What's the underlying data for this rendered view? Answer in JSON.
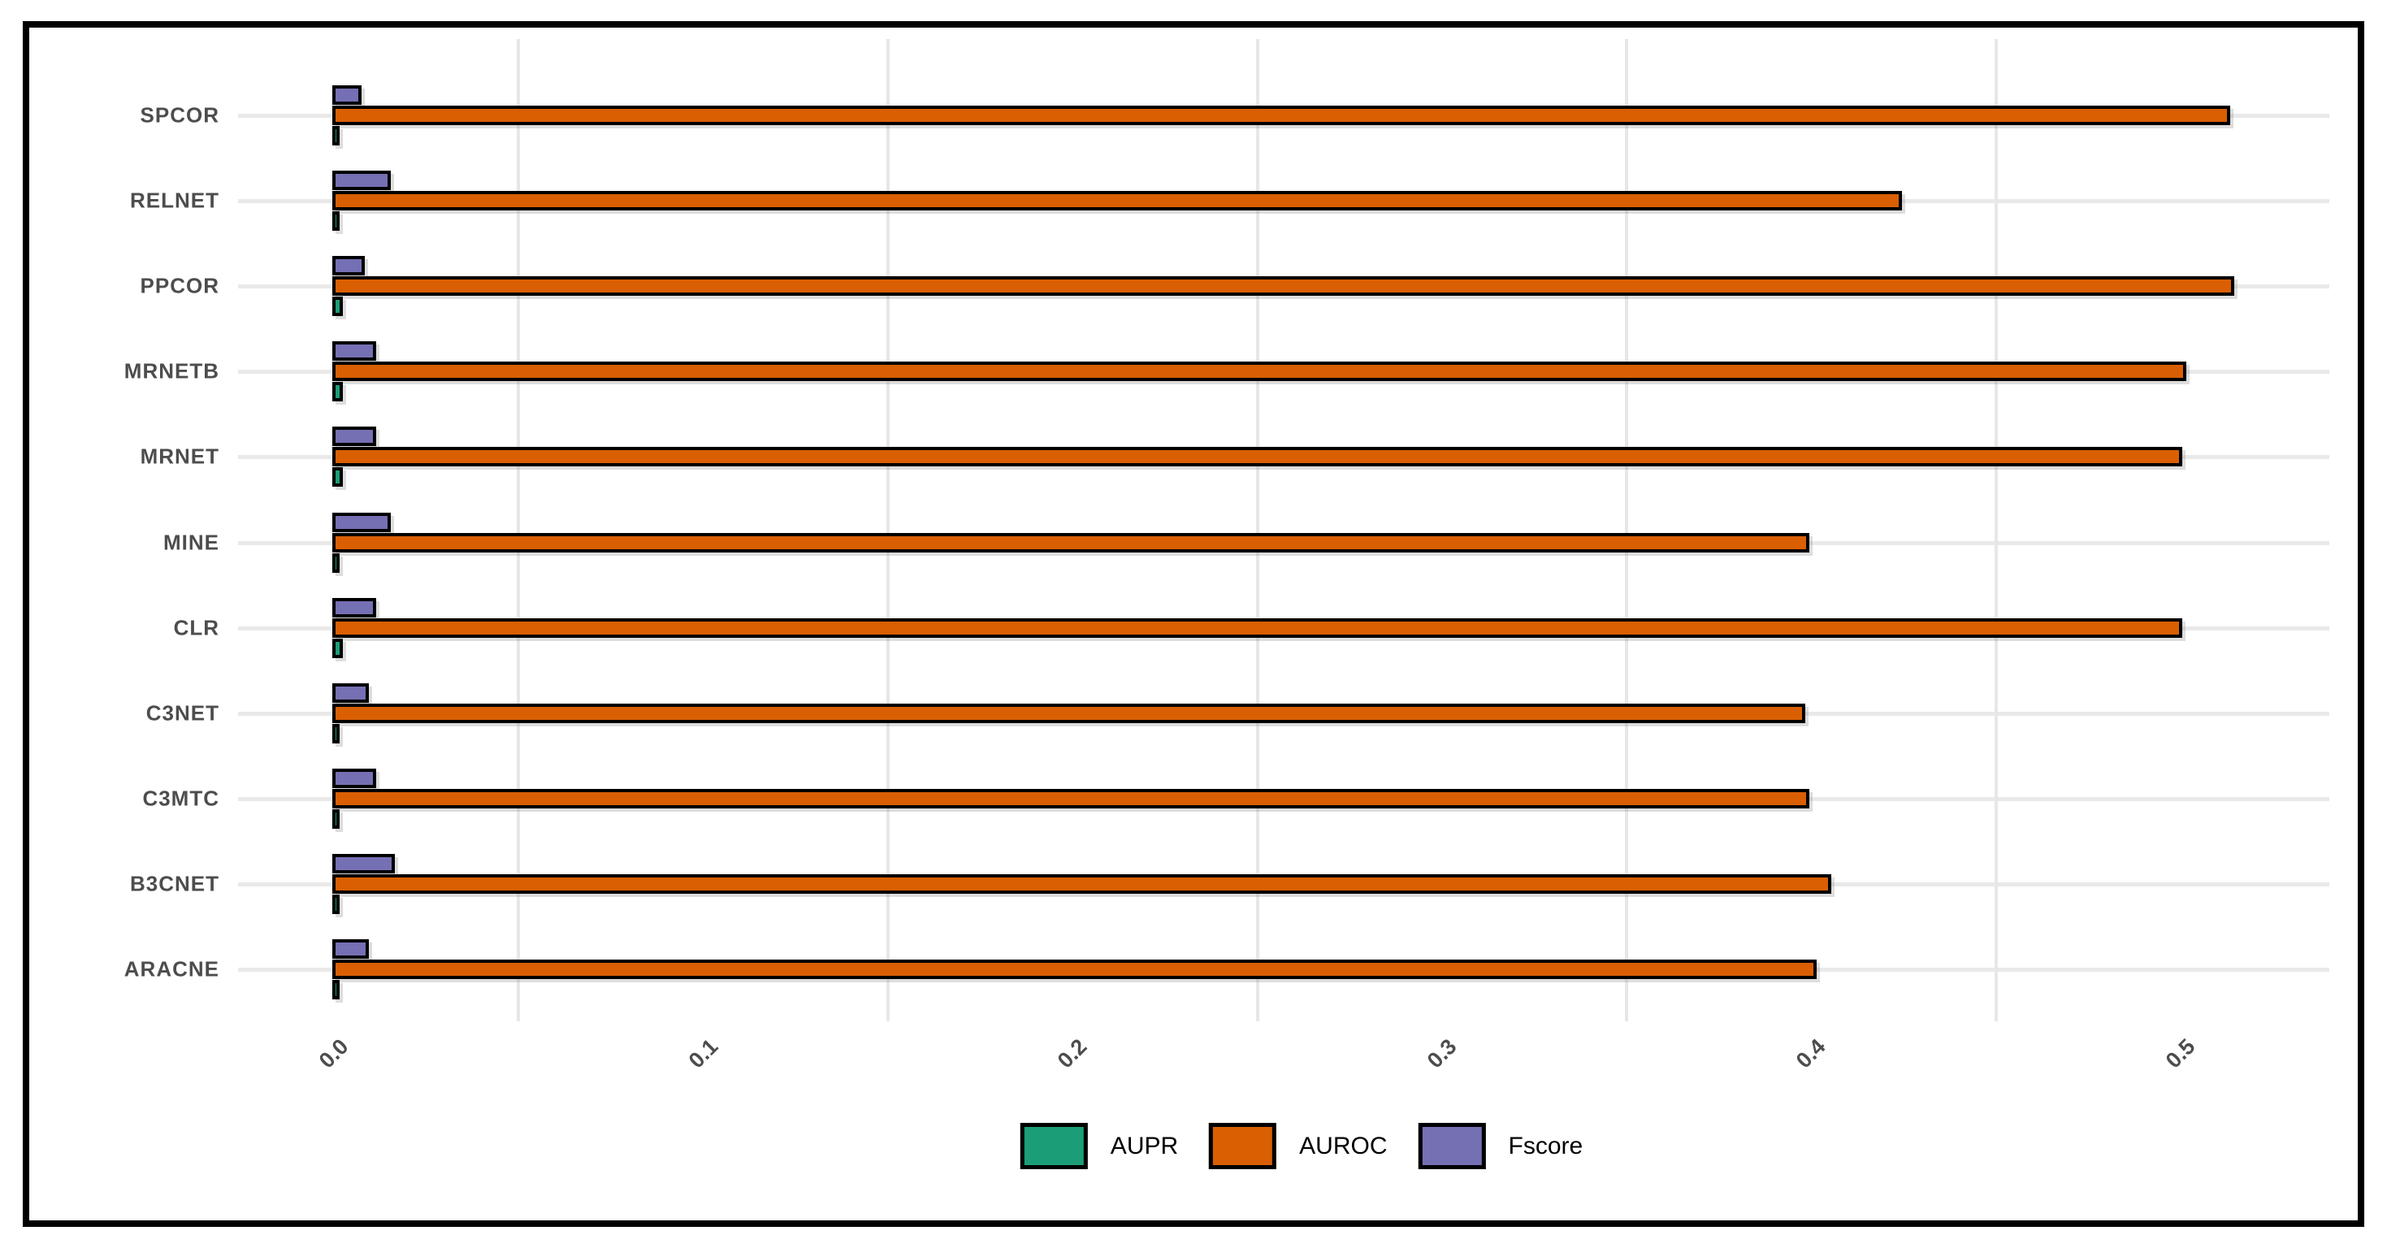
{
  "chart_data": {
    "type": "bar",
    "orientation": "horizontal",
    "title": "",
    "xlabel": "",
    "ylabel": "",
    "categories": [
      "SPCOR",
      "RELNET",
      "PPCOR",
      "MRNETB",
      "MRNET",
      "MINE",
      "CLR",
      "C3NET",
      "C3MTC",
      "B3CNET",
      "ARACNE"
    ],
    "series": [
      {
        "name": "AUPR",
        "color": "#1B9E77",
        "values": [
          0.001,
          0.001,
          0.002,
          0.002,
          0.002,
          0.001,
          0.002,
          0.001,
          0.001,
          0.001,
          0.001
        ]
      },
      {
        "name": "AUROC",
        "color": "#D95F02",
        "values": [
          0.513,
          0.424,
          0.514,
          0.501,
          0.5,
          0.399,
          0.5,
          0.398,
          0.399,
          0.405,
          0.401
        ]
      },
      {
        "name": "Fscore",
        "color": "#7570B3",
        "values": [
          0.007,
          0.015,
          0.008,
          0.011,
          0.011,
          0.015,
          0.011,
          0.009,
          0.011,
          0.016,
          0.009
        ]
      }
    ],
    "bar_draw_order_top_to_bottom": [
      "Fscore",
      "AUROC",
      "AUPR"
    ],
    "x_ticks": [
      {
        "label": "0.0",
        "value": 0.0
      },
      {
        "label": "0.1",
        "value": 0.1
      },
      {
        "label": "0.2",
        "value": 0.2
      },
      {
        "label": "0.3",
        "value": 0.3
      },
      {
        "label": "0.4",
        "value": 0.4
      },
      {
        "label": "0.5",
        "value": 0.5
      }
    ],
    "minor_gridlines": [
      0.05,
      0.15,
      0.25,
      0.35,
      0.45
    ],
    "xlim": [
      -0.026,
      0.54
    ],
    "grid": "horizontal-major and vertical-minor only",
    "legend_position": "bottom-center",
    "legend": [
      {
        "label": "AUPR",
        "color": "#1B9E77"
      },
      {
        "label": "AUROC",
        "color": "#D95F02"
      },
      {
        "label": "Fscore",
        "color": "#7570B3"
      }
    ],
    "style": {
      "bar_outline_color": "#000000",
      "axis_text_color": "#4d4d4d",
      "gridline_color": "#e8e8e8",
      "outer_border_color": "#000000",
      "background_color": "#ffffff"
    }
  }
}
